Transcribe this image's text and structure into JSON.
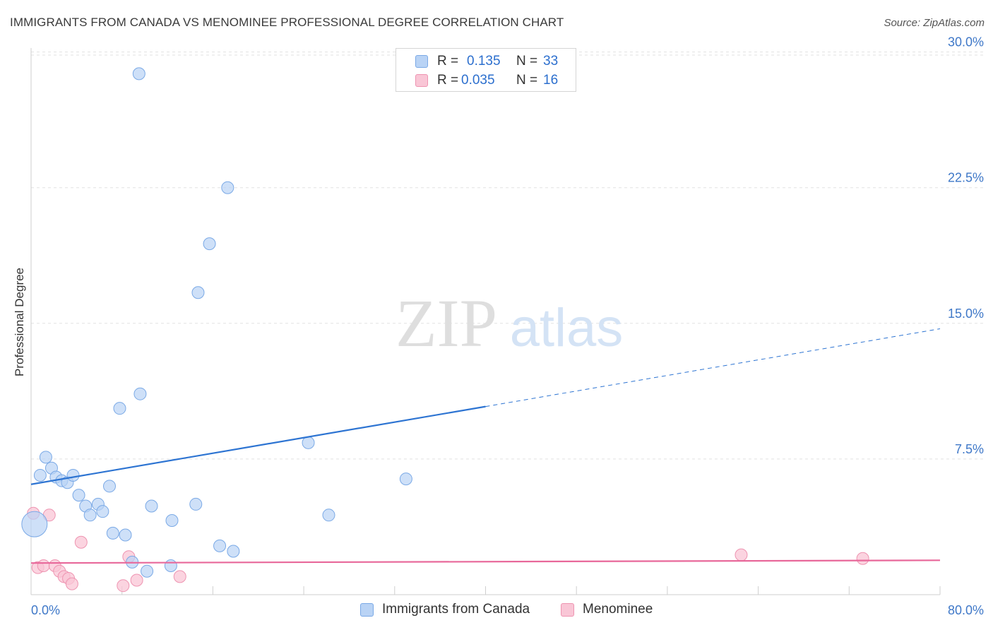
{
  "title": "IMMIGRANTS FROM CANADA VS MENOMINEE PROFESSIONAL DEGREE CORRELATION CHART",
  "source": "Source: ZipAtlas.com",
  "watermark": {
    "zip": "ZIP",
    "atlas": "atlas"
  },
  "colors": {
    "blue_fill": "#b9d3f5",
    "blue_stroke": "#7aa9e6",
    "blue_line": "#2d74d2",
    "pink_fill": "#f9c6d6",
    "pink_stroke": "#ee94b1",
    "pink_line": "#e8689a",
    "tick_label": "#3f78c8",
    "grid": "#e2e2e2"
  },
  "legend_top": [
    {
      "r_label": "R =",
      "r_value": "0.135",
      "n_label": "N =",
      "n_value": "33"
    },
    {
      "r_label": "R =",
      "r_value": "0.035",
      "n_label": "N =",
      "n_value": "16"
    }
  ],
  "legend_bottom": [
    "Immigrants from Canada",
    "Menominee"
  ],
  "chart_data": {
    "type": "scatter",
    "title": "IMMIGRANTS FROM CANADA VS MENOMINEE PROFESSIONAL DEGREE CORRELATION CHART",
    "xlabel": "",
    "ylabel": "Professional Degree",
    "xlim": [
      0,
      80
    ],
    "ylim": [
      0,
      31
    ],
    "x_tick_labels": [
      "0.0%",
      "80.0%"
    ],
    "y_ticks": [
      7.5,
      15.0,
      22.5,
      30.0
    ],
    "y_tick_labels": [
      "7.5%",
      "15.0%",
      "22.5%",
      "30.0%"
    ],
    "grid": true,
    "series": [
      {
        "name": "Immigrants from Canada",
        "r": 0.135,
        "n": 33,
        "trend": {
          "x0": 0,
          "y0": 6.1,
          "x1": 40,
          "y1": 10.4,
          "dashed_to_x": 80,
          "dashed_to_y": 14.7
        },
        "points": [
          {
            "x": 0.3,
            "y": 3.9,
            "big": true
          },
          {
            "x": 0.8,
            "y": 6.6
          },
          {
            "x": 1.3,
            "y": 7.6
          },
          {
            "x": 1.8,
            "y": 7.0
          },
          {
            "x": 2.2,
            "y": 6.5
          },
          {
            "x": 2.7,
            "y": 6.3
          },
          {
            "x": 3.2,
            "y": 6.2
          },
          {
            "x": 3.7,
            "y": 6.6
          },
          {
            "x": 4.2,
            "y": 5.5
          },
          {
            "x": 4.8,
            "y": 4.9
          },
          {
            "x": 5.2,
            "y": 4.4
          },
          {
            "x": 5.9,
            "y": 5.0
          },
          {
            "x": 6.3,
            "y": 4.6
          },
          {
            "x": 6.9,
            "y": 6.0
          },
          {
            "x": 7.2,
            "y": 3.4
          },
          {
            "x": 7.8,
            "y": 10.3
          },
          {
            "x": 8.3,
            "y": 3.3
          },
          {
            "x": 8.9,
            "y": 1.8
          },
          {
            "x": 9.5,
            "y": 28.8
          },
          {
            "x": 9.6,
            "y": 11.1
          },
          {
            "x": 10.2,
            "y": 1.3
          },
          {
            "x": 10.6,
            "y": 4.9
          },
          {
            "x": 12.3,
            "y": 1.6
          },
          {
            "x": 12.4,
            "y": 4.1
          },
          {
            "x": 14.5,
            "y": 5.0
          },
          {
            "x": 14.7,
            "y": 16.7
          },
          {
            "x": 15.7,
            "y": 19.4
          },
          {
            "x": 16.6,
            "y": 2.7
          },
          {
            "x": 17.3,
            "y": 22.5
          },
          {
            "x": 17.8,
            "y": 2.4
          },
          {
            "x": 24.4,
            "y": 8.4
          },
          {
            "x": 26.2,
            "y": 4.4
          },
          {
            "x": 33.0,
            "y": 6.4
          }
        ]
      },
      {
        "name": "Menominee",
        "r": 0.035,
        "n": 16,
        "trend": {
          "x0": 0,
          "y0": 1.75,
          "x1": 80,
          "y1": 1.9
        },
        "points": [
          {
            "x": 0.2,
            "y": 4.5
          },
          {
            "x": 0.6,
            "y": 1.5
          },
          {
            "x": 1.1,
            "y": 1.6
          },
          {
            "x": 1.6,
            "y": 4.4
          },
          {
            "x": 2.1,
            "y": 1.6
          },
          {
            "x": 2.5,
            "y": 1.3
          },
          {
            "x": 2.9,
            "y": 1.0
          },
          {
            "x": 3.3,
            "y": 0.9
          },
          {
            "x": 3.6,
            "y": 0.6
          },
          {
            "x": 4.4,
            "y": 2.9
          },
          {
            "x": 8.1,
            "y": 0.5
          },
          {
            "x": 8.6,
            "y": 2.1
          },
          {
            "x": 9.3,
            "y": 0.8
          },
          {
            "x": 13.1,
            "y": 1.0
          },
          {
            "x": 62.5,
            "y": 2.2
          },
          {
            "x": 73.2,
            "y": 2.0
          }
        ]
      }
    ]
  }
}
